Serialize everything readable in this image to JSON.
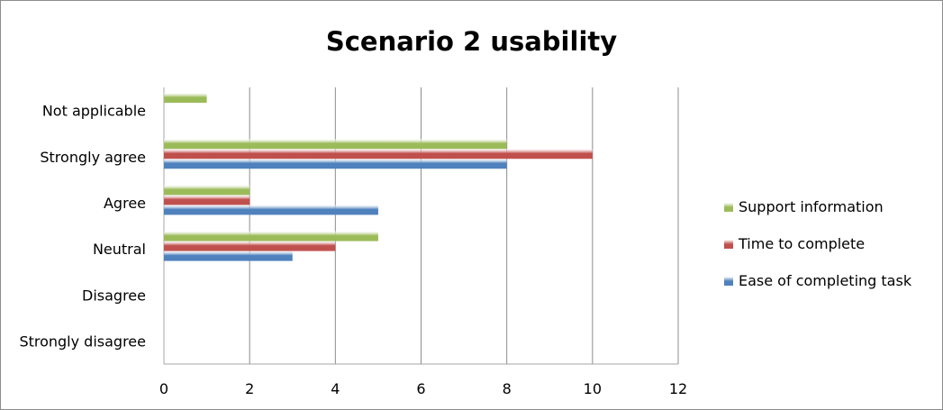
{
  "chart_data": {
    "type": "bar",
    "orientation": "horizontal",
    "title": "Scenario 2 usability",
    "categories": [
      "Strongly disagree",
      "Disagree",
      "Neutral",
      "Agree",
      "Strongly agree",
      "Not applicable"
    ],
    "series": [
      {
        "name": "Ease of completing task",
        "color": "#4f81bd",
        "values": [
          0,
          0,
          3,
          5,
          8,
          0
        ]
      },
      {
        "name": "Time to complete",
        "color": "#c0504d",
        "values": [
          0,
          0,
          4,
          2,
          10,
          0
        ]
      },
      {
        "name": "Support information",
        "color": "#9bbb59",
        "values": [
          0,
          0,
          5,
          2,
          8,
          1
        ]
      }
    ],
    "xticks": [
      "0",
      "2",
      "4",
      "6",
      "8",
      "10",
      "12"
    ],
    "xlim": [
      0,
      12
    ],
    "grid": "vertical",
    "legend_position": "right",
    "legend_order": [
      "Support information",
      "Time to complete",
      "Ease of completing task"
    ]
  }
}
